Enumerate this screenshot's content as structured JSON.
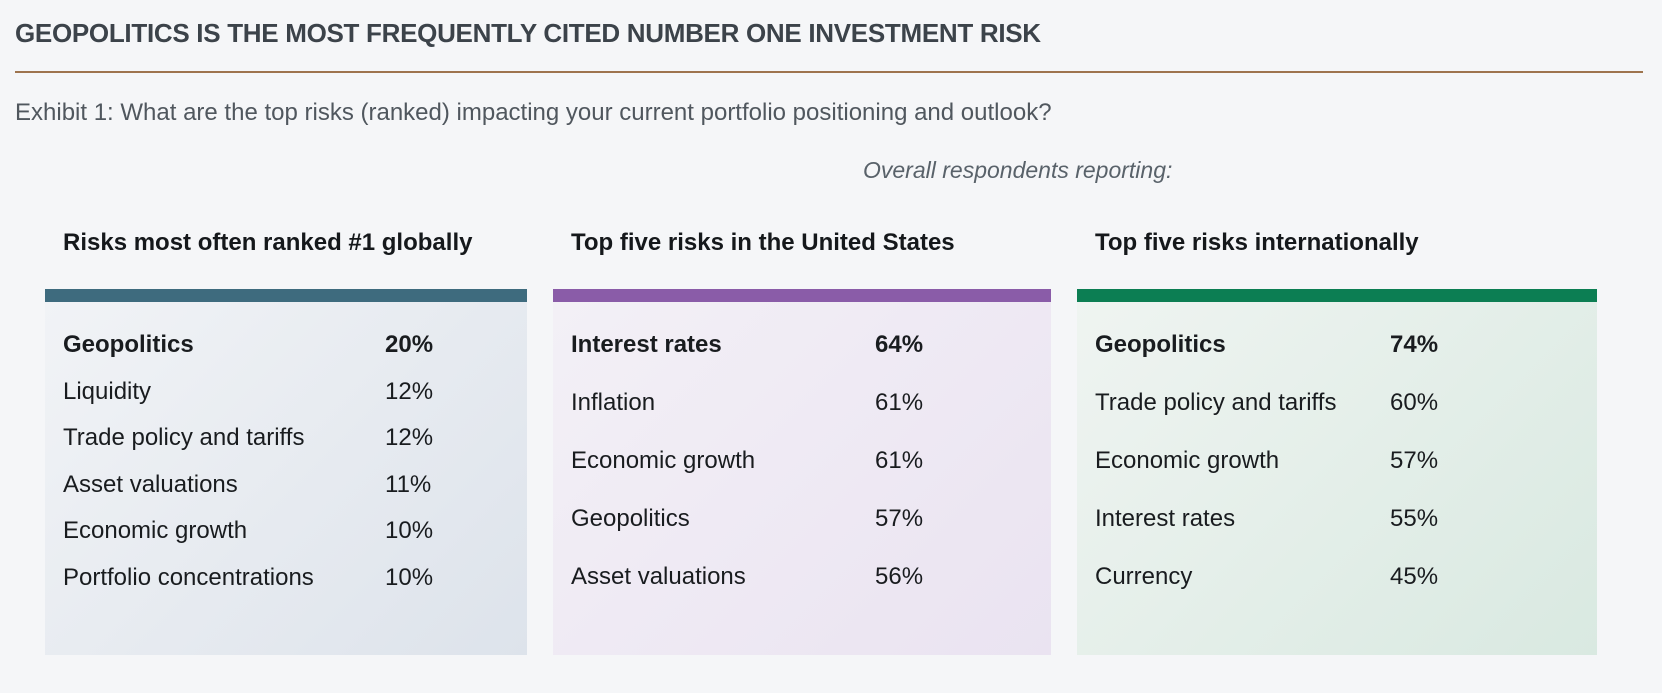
{
  "header": {
    "title": "GEOPOLITICS IS THE MOST FREQUENTLY CITED NUMBER ONE INVESTMENT RISK",
    "subtitle": "Exhibit 1: What are the top risks (ranked) impacting your current portfolio positioning and outlook?",
    "note": "Overall respondents reporting:"
  },
  "colors": {
    "page_background": "#f5f6f8",
    "title_text": "#3c434a",
    "divider_rule": "#9e744e",
    "panel_global_bar": "#3e6b7e",
    "panel_us_bar": "#8a5ca8",
    "panel_intl_bar": "#0c7e53"
  },
  "panels": [
    {
      "title": "Risks most often ranked #1 globally",
      "bar_color": "#3e6b7e",
      "bg_from": "#f1f3f6",
      "bg_to": "#dde3eb",
      "rows": [
        {
          "label": "Geopolitics",
          "value": "20%",
          "emphasis": true
        },
        {
          "label": "Liquidity",
          "value": "12%",
          "emphasis": false
        },
        {
          "label": "Trade policy and tariffs",
          "value": "12%",
          "emphasis": false
        },
        {
          "label": "Asset valuations",
          "value": "11%",
          "emphasis": false
        },
        {
          "label": "Economic growth",
          "value": "10%",
          "emphasis": false
        },
        {
          "label": "Portfolio concentrations",
          "value": "10%",
          "emphasis": false
        }
      ]
    },
    {
      "title": "Top five risks in the United States",
      "bar_color": "#8a5ca8",
      "bg_from": "#f3f0f6",
      "bg_to": "#eae3f1",
      "rows": [
        {
          "label": "Interest rates",
          "value": "64%",
          "emphasis": true
        },
        {
          "label": "Inflation",
          "value": "61%",
          "emphasis": false
        },
        {
          "label": "Economic growth",
          "value": "61%",
          "emphasis": false
        },
        {
          "label": "Geopolitics",
          "value": "57%",
          "emphasis": false
        },
        {
          "label": "Asset valuations",
          "value": "56%",
          "emphasis": false
        }
      ]
    },
    {
      "title": "Top five risks internationally",
      "bar_color": "#0c7e53",
      "bg_from": "#eff4f1",
      "bg_to": "#d9e9e1",
      "rows": [
        {
          "label": "Geopolitics",
          "value": "74%",
          "emphasis": true
        },
        {
          "label": "Trade policy and tariffs",
          "value": "60%",
          "emphasis": false
        },
        {
          "label": "Economic growth",
          "value": "57%",
          "emphasis": false
        },
        {
          "label": "Interest rates",
          "value": "55%",
          "emphasis": false
        },
        {
          "label": "Currency",
          "value": "45%",
          "emphasis": false
        }
      ]
    }
  ],
  "chart_data": [
    {
      "type": "table",
      "title": "Risks most often ranked #1 globally",
      "categories": [
        "Geopolitics",
        "Liquidity",
        "Trade policy and tariffs",
        "Asset valuations",
        "Economic growth",
        "Portfolio concentrations"
      ],
      "values": [
        20,
        12,
        12,
        11,
        10,
        10
      ],
      "unit": "%",
      "accent_color": "#3e6b7e"
    },
    {
      "type": "table",
      "title": "Top five risks in the United States",
      "categories": [
        "Interest rates",
        "Inflation",
        "Economic growth",
        "Geopolitics",
        "Asset valuations"
      ],
      "values": [
        64,
        61,
        61,
        57,
        56
      ],
      "unit": "%",
      "accent_color": "#8a5ca8"
    },
    {
      "type": "table",
      "title": "Top five risks internationally",
      "categories": [
        "Geopolitics",
        "Trade policy and tariffs",
        "Economic growth",
        "Interest rates",
        "Currency"
      ],
      "values": [
        74,
        60,
        57,
        55,
        45
      ],
      "unit": "%",
      "accent_color": "#0c7e53"
    }
  ]
}
